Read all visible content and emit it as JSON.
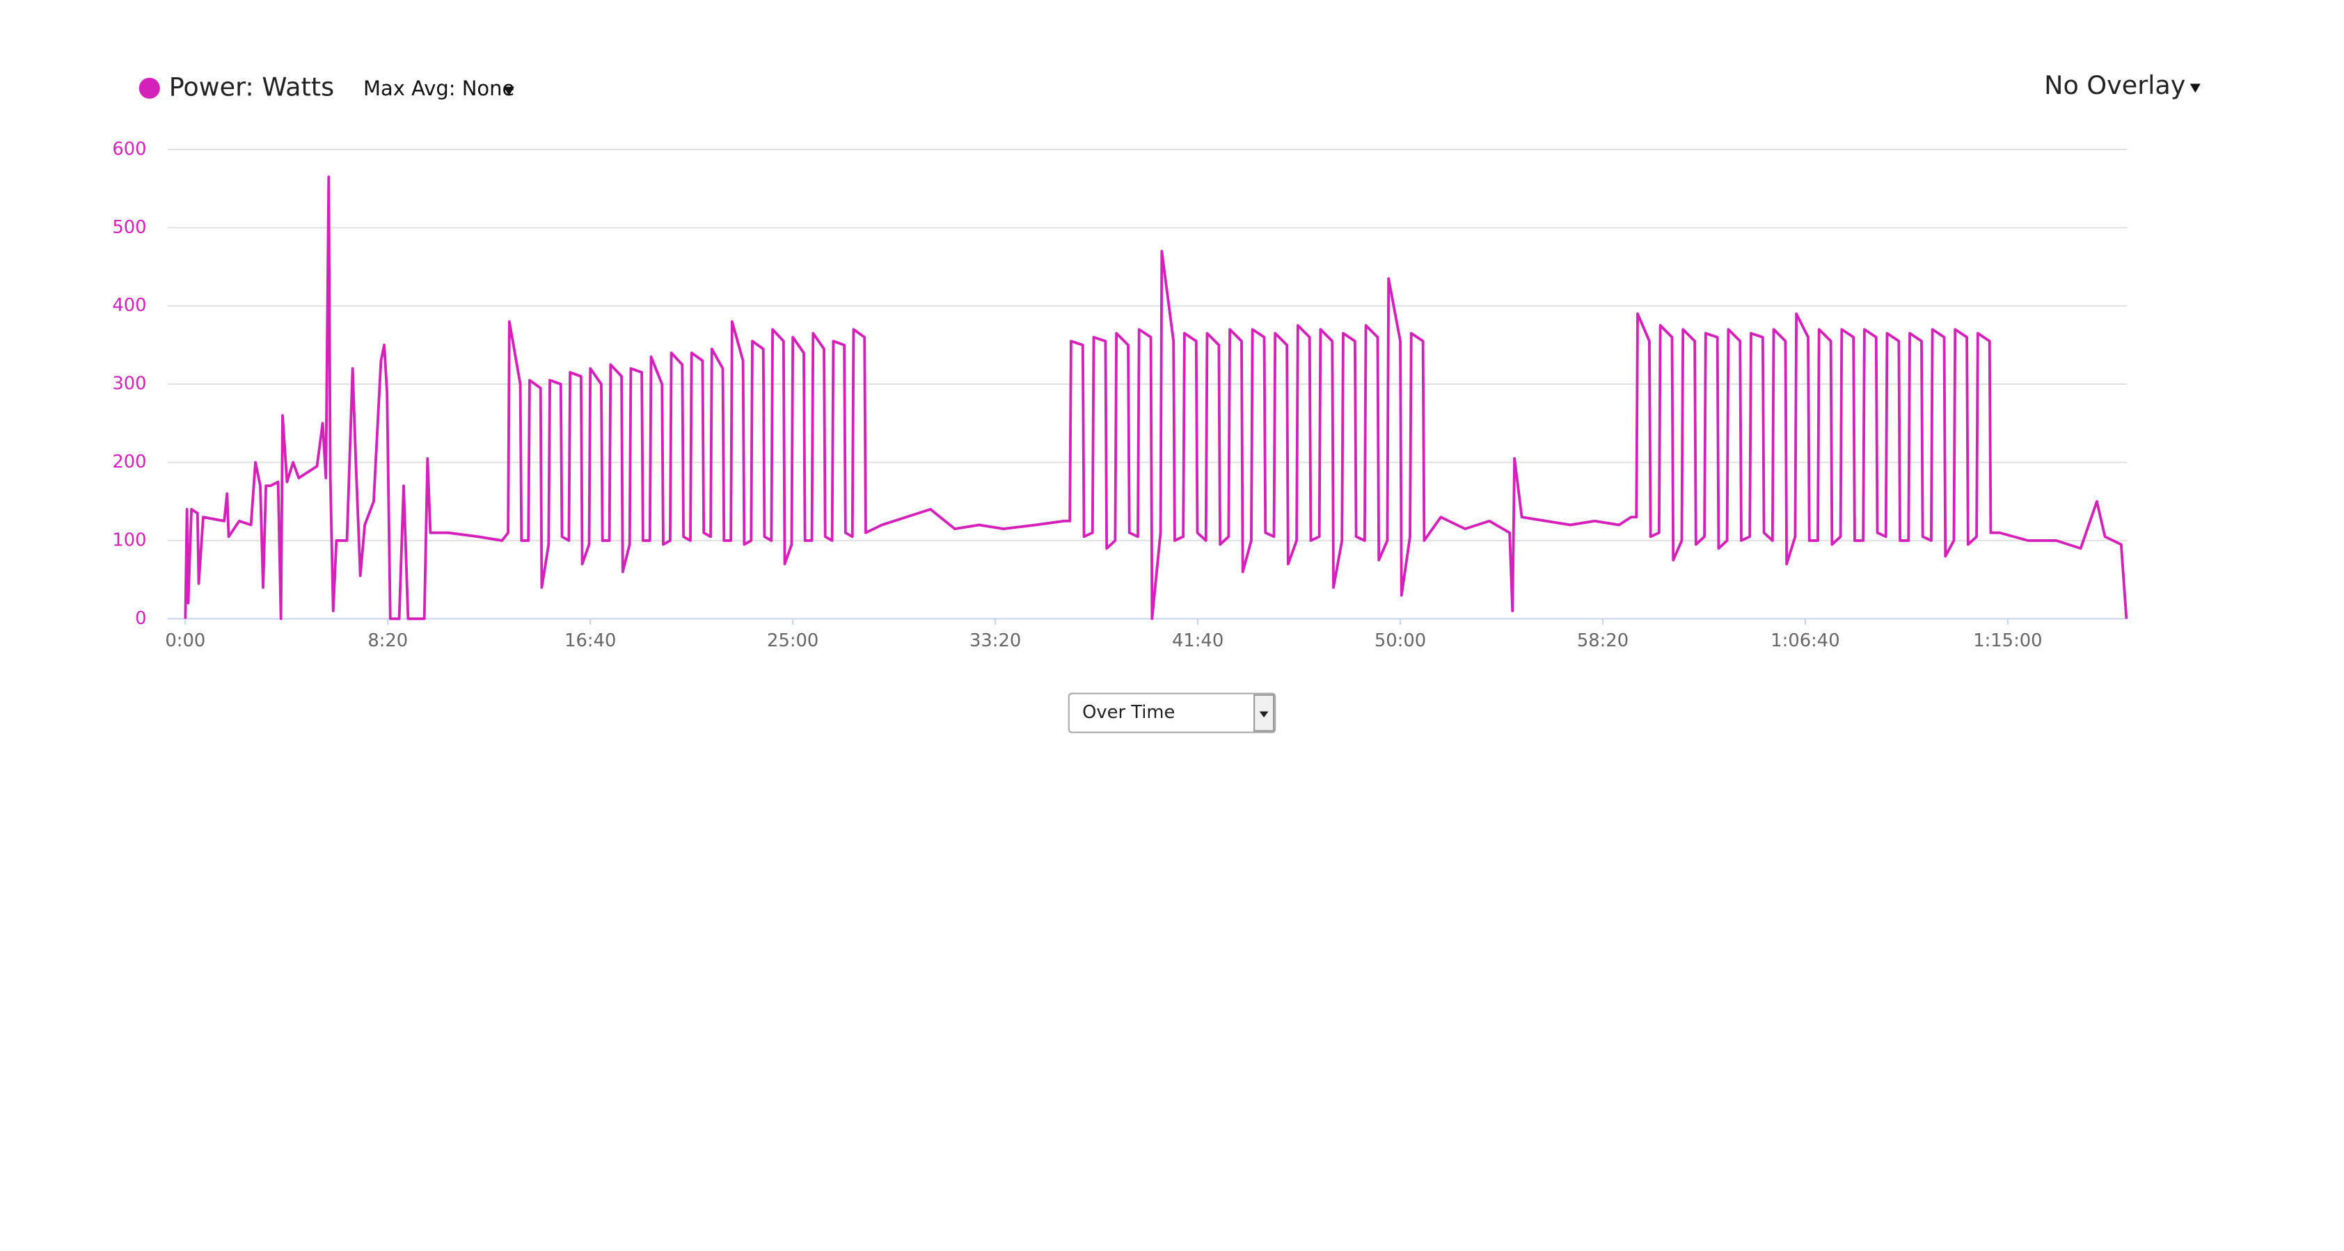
{
  "chart_data": {
    "type": "line",
    "x": [
      0,
      4,
      7,
      15,
      30,
      33,
      44,
      96,
      103,
      107,
      133,
      162,
      173,
      185,
      192,
      199,
      210,
      229,
      236,
      240,
      251,
      266,
      280,
      325,
      339,
      347,
      354,
      358,
      365,
      373,
      399,
      413,
      421,
      432,
      443,
      465,
      483,
      491,
      498,
      506,
      528,
      539,
      550,
      590,
      598,
      605,
      649,
      723,
      782,
      797,
      800,
      827,
      830,
      847,
      850,
      877,
      880,
      897,
      900,
      927,
      930,
      947,
      950,
      977,
      980,
      997,
      1000,
      1027,
      1030,
      1047,
      1050,
      1077,
      1080,
      1097,
      1100,
      1127,
      1130,
      1147,
      1150,
      1177,
      1180,
      1197,
      1200,
      1227,
      1230,
      1247,
      1250,
      1277,
      1280,
      1297,
      1300,
      1327,
      1330,
      1347,
      1350,
      1377,
      1380,
      1397,
      1400,
      1427,
      1430,
      1447,
      1450,
      1477,
      1480,
      1497,
      1500,
      1527,
      1530,
      1547,
      1550,
      1577,
      1580,
      1597,
      1600,
      1627,
      1630,
      1647,
      1650,
      1677,
      1680,
      1720,
      1780,
      1840,
      1900,
      1960,
      2020,
      2100,
      2170,
      2184,
      2187,
      2216,
      2219,
      2240,
      2243,
      2272,
      2275,
      2296,
      2299,
      2328,
      2331,
      2352,
      2355,
      2384,
      2387,
      2408,
      2411,
      2440,
      2443,
      2464,
      2467,
      2496,
      2499,
      2520,
      2523,
      2552,
      2555,
      2576,
      2579,
      2608,
      2611,
      2632,
      2635,
      2664,
      2667,
      2688,
      2691,
      2720,
      2723,
      2744,
      2747,
      2776,
      2779,
      2800,
      2803,
      2832,
      2835,
      2856,
      2859,
      2888,
      2891,
      2912,
      2915,
      2944,
      2947,
      2968,
      2971,
      3000,
      3003,
      3024,
      3027,
      3056,
      3059,
      3100,
      3160,
      3220,
      3270,
      3277,
      3282,
      3300,
      3360,
      3420,
      3480,
      3540,
      3570,
      3583,
      3586,
      3615,
      3618,
      3639,
      3642,
      3671,
      3674,
      3695,
      3698,
      3727,
      3730,
      3751,
      3754,
      3783,
      3786,
      3807,
      3810,
      3839,
      3842,
      3863,
      3866,
      3895,
      3898,
      3919,
      3922,
      3951,
      3954,
      3975,
      3978,
      4007,
      4010,
      4031,
      4034,
      4063,
      4066,
      4087,
      4090,
      4119,
      4122,
      4143,
      4146,
      4175,
      4178,
      4199,
      4202,
      4231,
      4234,
      4255,
      4258,
      4287,
      4290,
      4311,
      4314,
      4343,
      4346,
      4367,
      4370,
      4399,
      4402,
      4423,
      4426,
      4455,
      4458,
      4480,
      4550,
      4620,
      4680,
      4720,
      4740,
      4780,
      4793
    ],
    "series": [
      {
        "name": "Power: Watts",
        "color": "#d321b9",
        "values": [
          0,
          140,
          20,
          140,
          135,
          45,
          130,
          125,
          160,
          105,
          125,
          120,
          200,
          170,
          40,
          170,
          170,
          175,
          0,
          260,
          175,
          200,
          180,
          195,
          250,
          180,
          565,
          180,
          10,
          100,
          100,
          320,
          200,
          55,
          120,
          150,
          330,
          350,
          290,
          0,
          0,
          170,
          0,
          0,
          205,
          110,
          110,
          105,
          100,
          110,
          380,
          300,
          100,
          100,
          305,
          295,
          40,
          95,
          305,
          300,
          105,
          100,
          315,
          310,
          70,
          95,
          320,
          300,
          100,
          100,
          325,
          310,
          60,
          95,
          320,
          315,
          100,
          100,
          335,
          300,
          95,
          100,
          340,
          325,
          105,
          100,
          340,
          330,
          110,
          105,
          345,
          320,
          100,
          100,
          380,
          330,
          95,
          100,
          355,
          345,
          105,
          100,
          370,
          355,
          70,
          95,
          360,
          340,
          100,
          100,
          365,
          345,
          105,
          100,
          355,
          350,
          110,
          105,
          370,
          360,
          110,
          120,
          130,
          140,
          115,
          120,
          115,
          120,
          125,
          125,
          355,
          350,
          105,
          110,
          360,
          355,
          90,
          100,
          365,
          350,
          110,
          105,
          370,
          360,
          0,
          110,
          470,
          355,
          100,
          105,
          365,
          355,
          110,
          100,
          365,
          350,
          95,
          105,
          370,
          355,
          60,
          100,
          370,
          360,
          110,
          105,
          365,
          350,
          70,
          100,
          375,
          360,
          100,
          105,
          370,
          355,
          40,
          100,
          365,
          355,
          105,
          100,
          375,
          360,
          75,
          100,
          435,
          355,
          30,
          105,
          365,
          355,
          100,
          130,
          115,
          125,
          110,
          10,
          205,
          130,
          125,
          120,
          125,
          120,
          130,
          130,
          390,
          355,
          105,
          110,
          375,
          360,
          75,
          100,
          370,
          355,
          95,
          105,
          365,
          360,
          90,
          100,
          370,
          355,
          100,
          105,
          365,
          360,
          110,
          100,
          370,
          355,
          70,
          105,
          390,
          360,
          100,
          100,
          370,
          355,
          95,
          105,
          370,
          360,
          100,
          100,
          370,
          360,
          110,
          105,
          365,
          355,
          100,
          100,
          365,
          355,
          105,
          100,
          370,
          360,
          80,
          100,
          370,
          360,
          95,
          105,
          365,
          355,
          110,
          110,
          100,
          100,
          90,
          150,
          105,
          95,
          0
        ]
      }
    ],
    "xlim": [
      0,
      4795
    ],
    "ylim": [
      0,
      600
    ],
    "xticks": [
      {
        "value": 0,
        "label": "0:00"
      },
      {
        "value": 500,
        "label": "8:20"
      },
      {
        "value": 1000,
        "label": "16:40"
      },
      {
        "value": 1500,
        "label": "25:00"
      },
      {
        "value": 2000,
        "label": "33:20"
      },
      {
        "value": 2500,
        "label": "41:40"
      },
      {
        "value": 3000,
        "label": "50:00"
      },
      {
        "value": 3500,
        "label": "58:20"
      },
      {
        "value": 4000,
        "label": "1:06:40"
      },
      {
        "value": 4500,
        "label": "1:15:00"
      }
    ],
    "yticks": [
      0,
      100,
      200,
      300,
      400,
      500,
      600
    ],
    "grid": true
  },
  "controls": {
    "max_avg": "Max Avg: None",
    "overlay": "No Overlay",
    "view_select": "Over Time"
  }
}
